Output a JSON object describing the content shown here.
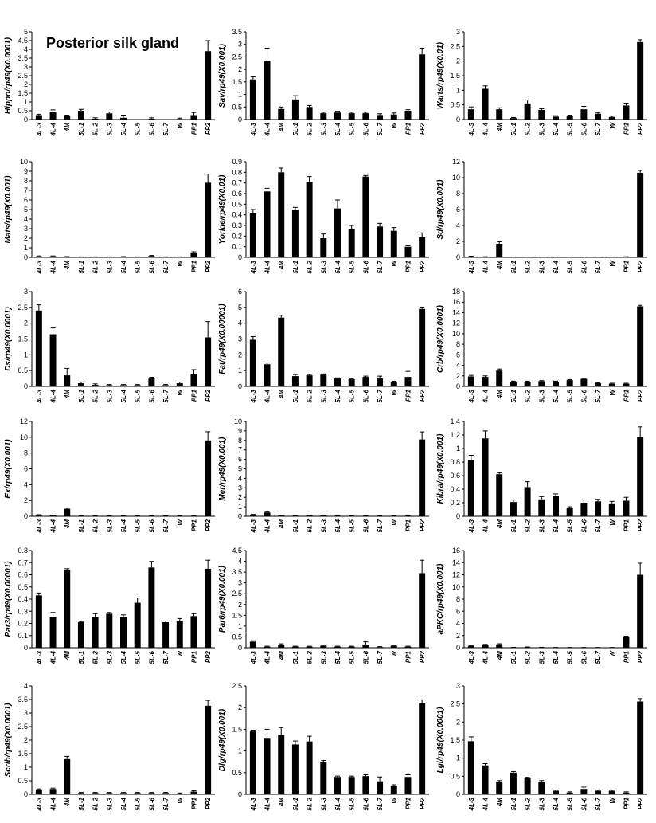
{
  "figure": {
    "title": "Posterior silk gland"
  },
  "chart_data": [
    {
      "type": "bar",
      "ylabel": "Hippo/rp49(X0.0001)",
      "ylim": [
        0,
        5
      ],
      "yticks": [
        0,
        0.5,
        1,
        1.5,
        2,
        2.5,
        3,
        3.5,
        4,
        4.5,
        5
      ],
      "categories": [
        "4L-3",
        "4L-4",
        "4M",
        "5L-1",
        "5L-2",
        "5L-3",
        "5L-4",
        "5L-5",
        "5L-6",
        "5L-7",
        "W",
        "PP1",
        "PP2"
      ],
      "values": [
        0.25,
        0.45,
        0.2,
        0.5,
        0.05,
        0.35,
        0.1,
        0,
        0.05,
        0,
        0.03,
        0.25,
        3.9
      ],
      "errors": [
        0.05,
        0.1,
        0.05,
        0.08,
        0.05,
        0.08,
        0.15,
        0,
        0.05,
        0,
        0.05,
        0.15,
        0.6
      ]
    },
    {
      "type": "bar",
      "ylabel": "Sav/rp49(X0.001)",
      "ylim": [
        0,
        3.5
      ],
      "yticks": [
        0,
        0.5,
        1,
        1.5,
        2,
        2.5,
        3,
        3.5
      ],
      "categories": [
        "4L-3",
        "4L-4",
        "4M",
        "5L-1",
        "5L-2",
        "5L-3",
        "5L-4",
        "5L-5",
        "5L-6",
        "5L-7",
        "W",
        "PP1",
        "PP2"
      ],
      "values": [
        1.6,
        2.35,
        0.42,
        0.8,
        0.5,
        0.25,
        0.28,
        0.25,
        0.25,
        0.18,
        0.2,
        0.35,
        2.6
      ],
      "errors": [
        0.1,
        0.5,
        0.08,
        0.15,
        0.06,
        0.04,
        0.05,
        0.04,
        0.04,
        0.05,
        0.06,
        0.04,
        0.25
      ]
    },
    {
      "type": "bar",
      "ylabel": "Warts/rp49(X0.01)",
      "ylim": [
        0,
        3
      ],
      "yticks": [
        0,
        0.5,
        1,
        1.5,
        2,
        2.5,
        3
      ],
      "categories": [
        "4L-3",
        "4L-4",
        "4M",
        "5L-1",
        "5L-2",
        "5L-3",
        "5L-4",
        "5L-5",
        "5L-6",
        "5L-7",
        "W",
        "PP1",
        "PP2"
      ],
      "values": [
        0.35,
        1.05,
        0.35,
        0.05,
        0.55,
        0.33,
        0.1,
        0.12,
        0.35,
        0.2,
        0.08,
        0.48,
        2.65
      ],
      "errors": [
        0.08,
        0.1,
        0.05,
        0.02,
        0.12,
        0.04,
        0.03,
        0.03,
        0.1,
        0.04,
        0.03,
        0.08,
        0.08
      ]
    },
    {
      "type": "bar",
      "ylabel": "Mats/rp49(X0.001)",
      "ylim": [
        0,
        10
      ],
      "yticks": [
        0,
        1,
        2,
        3,
        4,
        5,
        6,
        7,
        8,
        9,
        10
      ],
      "categories": [
        "4L-3",
        "4L-4",
        "4M",
        "5L-1",
        "5L-2",
        "5L-3",
        "5L-4",
        "5L-5",
        "5L-6",
        "5L-7",
        "W",
        "PP1",
        "PP2"
      ],
      "values": [
        0.1,
        0.1,
        0.05,
        0.03,
        0.03,
        0.03,
        0.05,
        0.03,
        0.15,
        0.03,
        0.03,
        0.5,
        7.8
      ],
      "errors": [
        0.05,
        0.05,
        0.03,
        0.02,
        0.02,
        0.02,
        0.03,
        0.02,
        0.05,
        0.02,
        0.02,
        0.08,
        0.9
      ]
    },
    {
      "type": "bar",
      "ylabel": "Yorkie/rp49(X0.01)",
      "ylim": [
        0,
        0.9
      ],
      "yticks": [
        0,
        0.1,
        0.2,
        0.3,
        0.4,
        0.5,
        0.6,
        0.7,
        0.8,
        0.9
      ],
      "categories": [
        "4L-3",
        "4L-4",
        "4M",
        "5L-1",
        "5L-2",
        "5L-3",
        "5L-4",
        "5L-5",
        "5L-6",
        "5L-7",
        "W",
        "PP1",
        "PP2"
      ],
      "values": [
        0.42,
        0.62,
        0.8,
        0.45,
        0.71,
        0.18,
        0.46,
        0.27,
        0.76,
        0.29,
        0.25,
        0.1,
        0.19
      ],
      "errors": [
        0.03,
        0.03,
        0.04,
        0.02,
        0.05,
        0.04,
        0.08,
        0.03,
        0.01,
        0.03,
        0.03,
        0.01,
        0.04
      ]
    },
    {
      "type": "bar",
      "ylabel": "Sd/rp49(X0.001)",
      "ylim": [
        0,
        12
      ],
      "yticks": [
        0,
        2,
        4,
        6,
        8,
        10,
        12
      ],
      "categories": [
        "4L-3",
        "4L-4",
        "4M",
        "5L-1",
        "5L-2",
        "5L-3",
        "5L-4",
        "5L-5",
        "5L-6",
        "5L-7",
        "W",
        "PP1",
        "PP2"
      ],
      "values": [
        0.1,
        0.05,
        1.7,
        0.03,
        0.03,
        0.03,
        0.03,
        0.03,
        0.03,
        0.03,
        0.03,
        0.05,
        10.6
      ],
      "errors": [
        0.05,
        0.03,
        0.25,
        0.02,
        0.02,
        0.02,
        0.02,
        0.02,
        0.02,
        0.02,
        0.02,
        0.03,
        0.3
      ]
    },
    {
      "type": "bar",
      "ylabel": "Ds/rp49(X0.0001)",
      "ylim": [
        0,
        3
      ],
      "yticks": [
        0,
        0.5,
        1,
        1.5,
        2,
        2.5,
        3
      ],
      "categories": [
        "4L-3",
        "4L-4",
        "4M",
        "5L-1",
        "5L-2",
        "5L-3",
        "5L-4",
        "5L-5",
        "5L-6",
        "5L-7",
        "W",
        "PP1",
        "PP2"
      ],
      "values": [
        2.4,
        1.65,
        0.35,
        0.1,
        0.05,
        0.04,
        0.04,
        0.04,
        0.25,
        0.04,
        0.1,
        0.38,
        1.55
      ],
      "errors": [
        0.18,
        0.2,
        0.22,
        0.04,
        0.03,
        0.02,
        0.02,
        0.02,
        0.04,
        0.02,
        0.04,
        0.15,
        0.5
      ]
    },
    {
      "type": "bar",
      "ylabel": "Fat/rp49(X0.00001)",
      "ylim": [
        0,
        6
      ],
      "yticks": [
        0,
        1,
        2,
        3,
        4,
        5,
        6
      ],
      "categories": [
        "4L-3",
        "4L-4",
        "4M",
        "5L-1",
        "5L-2",
        "5L-3",
        "5L-4",
        "5L-5",
        "5L-6",
        "5L-7",
        "W",
        "PP1",
        "PP2"
      ],
      "values": [
        2.95,
        1.4,
        4.35,
        0.65,
        0.7,
        0.75,
        0.5,
        0.45,
        0.6,
        0.5,
        0.25,
        0.6,
        4.9
      ],
      "errors": [
        0.2,
        0.08,
        0.15,
        0.1,
        0.05,
        0.04,
        0.04,
        0.04,
        0.05,
        0.15,
        0.08,
        0.35,
        0.12
      ]
    },
    {
      "type": "bar",
      "ylabel": "Crb/rp49(X0.0001)",
      "ylim": [
        0,
        18
      ],
      "yticks": [
        0,
        2,
        4,
        6,
        8,
        10,
        12,
        14,
        16,
        18
      ],
      "categories": [
        "4L-3",
        "4L-4",
        "4M",
        "5L-1",
        "5L-2",
        "5L-3",
        "5L-4",
        "5L-5",
        "5L-6",
        "5L-7",
        "W",
        "PP1",
        "PP2"
      ],
      "values": [
        1.9,
        1.8,
        3.0,
        0.9,
        0.9,
        1.0,
        0.9,
        1.2,
        1.4,
        0.6,
        0.5,
        0.5,
        15.2
      ],
      "errors": [
        0.2,
        0.2,
        0.3,
        0.1,
        0.1,
        0.1,
        0.1,
        0.1,
        0.1,
        0.1,
        0.1,
        0.1,
        0.2
      ]
    },
    {
      "type": "bar",
      "ylabel": "Ex/rp49(X0.001)",
      "ylim": [
        0,
        12
      ],
      "yticks": [
        0,
        2,
        4,
        6,
        8,
        10,
        12
      ],
      "categories": [
        "4L-3",
        "4L-4",
        "4M",
        "5L-1",
        "5L-2",
        "5L-3",
        "5L-4",
        "5L-5",
        "5L-6",
        "5L-7",
        "W",
        "PP1",
        "PP2"
      ],
      "values": [
        0.15,
        0.1,
        0.95,
        0.03,
        0.03,
        0.03,
        0.03,
        0.03,
        0.03,
        0.03,
        0.03,
        0.05,
        9.6
      ],
      "errors": [
        0.05,
        0.05,
        0.1,
        0.02,
        0.02,
        0.02,
        0.02,
        0.02,
        0.02,
        0.02,
        0.02,
        0.03,
        1.1
      ]
    },
    {
      "type": "bar",
      "ylabel": "Mer/rp49(X0.001)",
      "ylim": [
        0,
        10
      ],
      "yticks": [
        0,
        1,
        2,
        3,
        4,
        5,
        6,
        7,
        8,
        9,
        10
      ],
      "categories": [
        "4L-3",
        "4L-4",
        "4M",
        "5L-1",
        "5L-2",
        "5L-3",
        "5L-4",
        "5L-5",
        "5L-6",
        "5L-7",
        "W",
        "PP1",
        "PP2"
      ],
      "values": [
        0.15,
        0.4,
        0.1,
        0.05,
        0.1,
        0.1,
        0.05,
        0.03,
        0.03,
        0.03,
        0.03,
        0.05,
        8.1
      ],
      "errors": [
        0.05,
        0.05,
        0.03,
        0.02,
        0.03,
        0.03,
        0.02,
        0.02,
        0.02,
        0.02,
        0.02,
        0.02,
        0.8
      ]
    },
    {
      "type": "bar",
      "ylabel": "Kibra/rp49(X0.001)",
      "ylim": [
        0,
        1.4
      ],
      "yticks": [
        0,
        0.2,
        0.4,
        0.6,
        0.8,
        1,
        1.2,
        1.4
      ],
      "categories": [
        "4L-3",
        "4L-4",
        "4M",
        "5L-1",
        "5L-2",
        "5L-3",
        "5L-4",
        "5L-5",
        "5L-6",
        "5L-7",
        "W",
        "PP1",
        "PP2"
      ],
      "values": [
        0.83,
        1.15,
        0.62,
        0.21,
        0.43,
        0.25,
        0.3,
        0.12,
        0.2,
        0.22,
        0.19,
        0.23,
        1.17
      ],
      "errors": [
        0.07,
        0.11,
        0.02,
        0.03,
        0.08,
        0.04,
        0.03,
        0.02,
        0.04,
        0.03,
        0.03,
        0.05,
        0.15
      ]
    },
    {
      "type": "bar",
      "ylabel": "Par3/rp49(X0.00001)",
      "ylim": [
        0,
        0.8
      ],
      "yticks": [
        0,
        0.1,
        0.2,
        0.3,
        0.4,
        0.5,
        0.6,
        0.7,
        0.8
      ],
      "categories": [
        "4L-3",
        "4L-4",
        "4M",
        "5L-1",
        "5L-2",
        "5L-3",
        "5L-4",
        "5L-5",
        "5L-6",
        "5L-7",
        "W",
        "PP1",
        "PP2"
      ],
      "values": [
        0.43,
        0.25,
        0.64,
        0.21,
        0.25,
        0.28,
        0.25,
        0.37,
        0.66,
        0.21,
        0.22,
        0.26,
        0.65
      ],
      "errors": [
        0.02,
        0.04,
        0.01,
        0.005,
        0.03,
        0.01,
        0.02,
        0.04,
        0.05,
        0.01,
        0.02,
        0.02,
        0.07
      ]
    },
    {
      "type": "bar",
      "ylabel": "Par6/rp49(X0.001)",
      "ylim": [
        0,
        4.5
      ],
      "yticks": [
        0,
        0.5,
        1,
        1.5,
        2,
        2.5,
        3,
        3.5,
        4,
        4.5
      ],
      "categories": [
        "4L-3",
        "4L-4",
        "4M",
        "5L-1",
        "5L-2",
        "5L-3",
        "5L-4",
        "5L-5",
        "5L-6",
        "5L-7",
        "W",
        "PP1",
        "PP2"
      ],
      "values": [
        0.28,
        0.05,
        0.15,
        0.05,
        0.05,
        0.1,
        0.05,
        0.05,
        0.15,
        0.03,
        0.1,
        0.05,
        3.45
      ],
      "errors": [
        0.04,
        0.02,
        0.03,
        0.02,
        0.02,
        0.03,
        0.02,
        0.02,
        0.12,
        0.02,
        0.02,
        0.02,
        0.6
      ]
    },
    {
      "type": "bar",
      "ylabel": "aPKC/rp49(X0.001)",
      "ylim": [
        0,
        16
      ],
      "yticks": [
        0,
        2,
        4,
        6,
        8,
        10,
        12,
        14,
        16
      ],
      "categories": [
        "4L-3",
        "4L-4",
        "4M",
        "5L-1",
        "5L-2",
        "5L-3",
        "5L-4",
        "5L-5",
        "5L-6",
        "5L-7",
        "W",
        "PP1",
        "PP2"
      ],
      "values": [
        0.3,
        0.45,
        0.55,
        0.05,
        0.1,
        0.05,
        0.03,
        0.03,
        0.03,
        0.03,
        0.03,
        1.8,
        12.0
      ],
      "errors": [
        0.05,
        0.1,
        0.1,
        0.02,
        0.03,
        0.02,
        0.02,
        0.02,
        0.02,
        0.02,
        0.02,
        0.1,
        1.9
      ]
    },
    {
      "type": "bar",
      "ylabel": "Scrib/rp49(X0.0001)",
      "ylim": [
        0,
        4
      ],
      "yticks": [
        0,
        0.5,
        1,
        1.5,
        2,
        2.5,
        3,
        3.5,
        4
      ],
      "categories": [
        "4L-3",
        "4L-4",
        "4M",
        "5L-1",
        "5L-2",
        "5L-3",
        "5L-4",
        "5L-5",
        "5L-6",
        "5L-7",
        "W",
        "PP1",
        "PP2"
      ],
      "values": [
        0.18,
        0.2,
        1.3,
        0.05,
        0.05,
        0.05,
        0.05,
        0.05,
        0.05,
        0.05,
        0.03,
        0.1,
        3.27
      ],
      "errors": [
        0.02,
        0.03,
        0.1,
        0.02,
        0.02,
        0.02,
        0.02,
        0.02,
        0.02,
        0.02,
        0.02,
        0.03,
        0.2
      ]
    },
    {
      "type": "bar",
      "ylabel": "Dlg/rp49(X0.001)",
      "ylim": [
        0,
        2.5
      ],
      "yticks": [
        0,
        0.5,
        1,
        1.5,
        2,
        2.5
      ],
      "categories": [
        "4L-3",
        "4L-4",
        "4M",
        "5L-1",
        "5L-2",
        "5L-3",
        "5L-4",
        "5L-5",
        "5L-6",
        "5L-7",
        "W",
        "PP1",
        "PP2"
      ],
      "values": [
        1.45,
        1.3,
        1.37,
        1.15,
        1.22,
        0.75,
        0.4,
        0.4,
        0.42,
        0.3,
        0.2,
        0.4,
        2.1
      ],
      "errors": [
        0.03,
        0.2,
        0.17,
        0.08,
        0.12,
        0.03,
        0.02,
        0.02,
        0.03,
        0.1,
        0.02,
        0.05,
        0.08
      ]
    },
    {
      "type": "bar",
      "ylabel": "Lgl/rp49(X0.0001)",
      "ylim": [
        0,
        3
      ],
      "yticks": [
        0,
        0.5,
        1,
        1.5,
        2,
        2.5,
        3
      ],
      "categories": [
        "4L-3",
        "4L-4",
        "4M",
        "5L-1",
        "5L-2",
        "5L-3",
        "5L-4",
        "5L-5",
        "5L-6",
        "5L-7",
        "W",
        "PP1",
        "PP2"
      ],
      "values": [
        1.47,
        0.8,
        0.35,
        0.6,
        0.45,
        0.35,
        0.1,
        0.05,
        0.15,
        0.1,
        0.1,
        0.05,
        2.57
      ],
      "errors": [
        0.12,
        0.05,
        0.03,
        0.03,
        0.02,
        0.03,
        0.02,
        0.02,
        0.05,
        0.02,
        0.02,
        0.02,
        0.08
      ]
    }
  ]
}
